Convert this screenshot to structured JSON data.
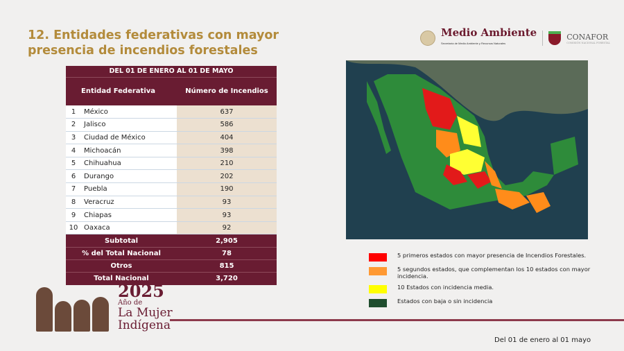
{
  "title": "12. Entidades federativas con mayor presencia de incendios forestales",
  "logos": {
    "medio_ambiente": "Medio Ambiente",
    "medio_ambiente_sub": "Secretaría de Medio Ambiente y Recursos Naturales",
    "conafor": "CONAFOR",
    "conafor_sub": "COMISIÓN NACIONAL FORESTAL"
  },
  "table": {
    "period": "DEL 01 DE ENERO AL 01 DE MAYO",
    "headers": [
      "Entidad Federativa",
      "Número de Incendios"
    ],
    "rows": [
      {
        "rank": "1",
        "state": "México",
        "fires": "637"
      },
      {
        "rank": "2",
        "state": "Jalisco",
        "fires": "586"
      },
      {
        "rank": "3",
        "state": "Ciudad de México",
        "fires": "404"
      },
      {
        "rank": "4",
        "state": "Michoacán",
        "fires": "398"
      },
      {
        "rank": "5",
        "state": "Chihuahua",
        "fires": "210"
      },
      {
        "rank": "6",
        "state": "Durango",
        "fires": "202"
      },
      {
        "rank": "7",
        "state": "Puebla",
        "fires": "190"
      },
      {
        "rank": "8",
        "state": "Veracruz",
        "fires": "93"
      },
      {
        "rank": "9",
        "state": "Chiapas",
        "fires": "93"
      },
      {
        "rank": "10",
        "state": "Oaxaca",
        "fires": "92"
      }
    ],
    "summary": [
      {
        "label": "Subtotal",
        "value": "2,905"
      },
      {
        "label": "% del Total Nacional",
        "value": "78"
      },
      {
        "label": "Otros",
        "value": "815"
      },
      {
        "label": "Total Nacional",
        "value": "3,720"
      }
    ]
  },
  "legend": [
    {
      "color": "#ff0000",
      "text": "5 primeros estados con mayor presencia de Incendios Forestales."
    },
    {
      "color": "#ff9933",
      "text": "5 segundos estados, que complementan los 10 estados con mayor incidencia."
    },
    {
      "color": "#ffff00",
      "text": "10 Estados con incidencia media."
    },
    {
      "color": "#1f4d2e",
      "text": "Estados con baja o sin incidencia"
    }
  ],
  "brand": {
    "year": "2025",
    "line1": "Año de",
    "line2": "La Mujer",
    "line3": "Indígena"
  },
  "footer": "Del 01 de enero al 01 mayo"
}
